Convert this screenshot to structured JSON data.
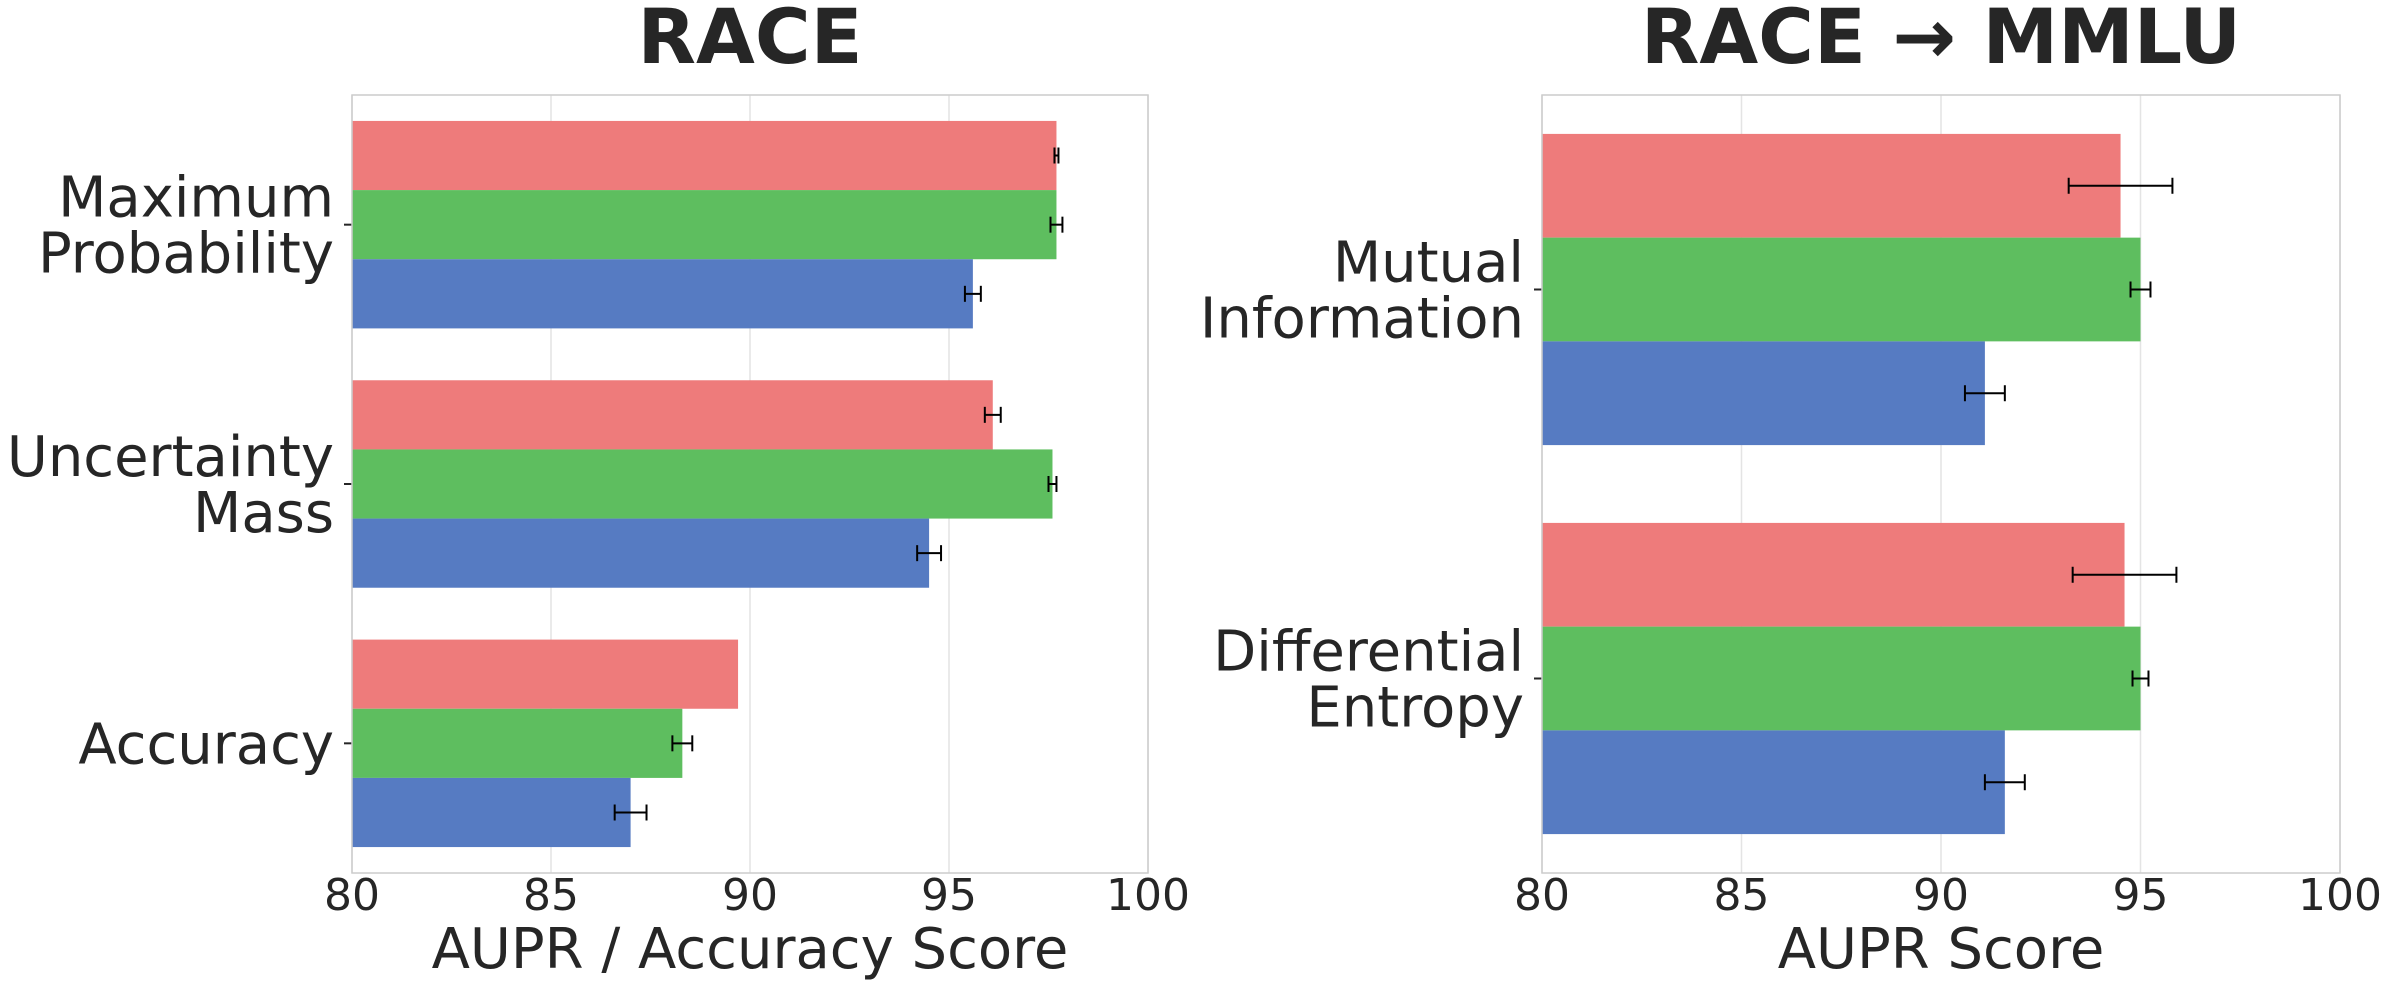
{
  "chart_data": [
    {
      "type": "bar",
      "orientation": "horizontal",
      "title": "RACE",
      "xlabel": "AUPR / Accuracy Score",
      "ylabel": "",
      "xlim": [
        80,
        100
      ],
      "xticks": [
        80,
        85,
        90,
        95,
        100
      ],
      "grid": true,
      "legend": "none",
      "categories": [
        [
          "Maximum",
          "Probability"
        ],
        [
          "Uncertainty",
          "Mass"
        ],
        [
          "Accuracy"
        ]
      ],
      "series": [
        {
          "name": "series-red",
          "color": "#ee7b7b",
          "values": [
            97.7,
            96.1,
            89.7
          ],
          "errors": [
            0.05,
            0.2,
            null
          ]
        },
        {
          "name": "series-green",
          "color": "#5ebe5f",
          "values": [
            97.7,
            97.6,
            88.3
          ],
          "errors": [
            0.15,
            0.1,
            0.25
          ]
        },
        {
          "name": "series-blue",
          "color": "#567bc2",
          "values": [
            95.6,
            94.5,
            87.0
          ],
          "errors": [
            0.2,
            0.3,
            0.4
          ]
        }
      ]
    },
    {
      "type": "bar",
      "orientation": "horizontal",
      "title": "RACE → MMLU",
      "xlabel": "AUPR Score",
      "ylabel": "",
      "xlim": [
        80,
        100
      ],
      "xticks": [
        80,
        85,
        90,
        95,
        100
      ],
      "grid": true,
      "legend": "none",
      "categories": [
        [
          "Mutual",
          "Information"
        ],
        [
          "Differential",
          "Entropy"
        ]
      ],
      "series": [
        {
          "name": "series-red",
          "color": "#ee7b7b",
          "values": [
            94.5,
            94.6
          ],
          "errors": [
            1.3,
            1.3
          ]
        },
        {
          "name": "series-green",
          "color": "#5ebe5f",
          "values": [
            95.0,
            95.0
          ],
          "errors": [
            0.25,
            0.2
          ]
        },
        {
          "name": "series-blue",
          "color": "#567bc2",
          "values": [
            91.1,
            91.6
          ],
          "errors": [
            0.5,
            0.5
          ]
        }
      ]
    }
  ]
}
